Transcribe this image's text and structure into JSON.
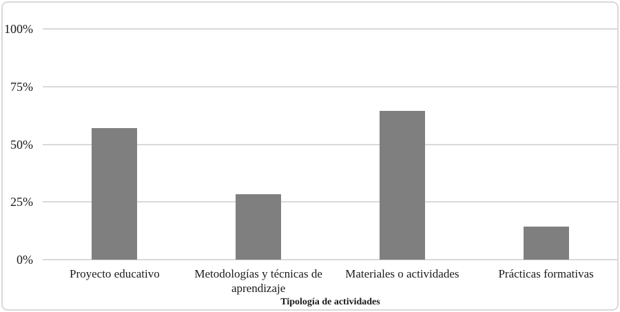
{
  "figure": {
    "background": "#ffffff",
    "frame_border_color": "#d8d8d8",
    "gridline_color": "#d9d9d9",
    "bar_color": "#7f7f7f",
    "text_color": "#1a1a1a"
  },
  "chart_data": {
    "type": "bar",
    "title": "",
    "categories": [
      "Proyecto educativo",
      "Metodologías y técnicas de aprendizaje",
      "Materiales o actividades",
      "Prácticas formativas"
    ],
    "values": [
      57,
      28.5,
      64.5,
      14.3
    ],
    "xlabel": "Tipología de actividades",
    "ylabel": "",
    "ylim": [
      0,
      100
    ],
    "yticks": [
      0,
      25,
      50,
      75,
      100
    ],
    "ytick_labels": [
      "0%",
      "25%",
      "50%",
      "75%",
      "100%"
    ],
    "grid": true,
    "legend": false,
    "bar_color": "#7f7f7f"
  }
}
